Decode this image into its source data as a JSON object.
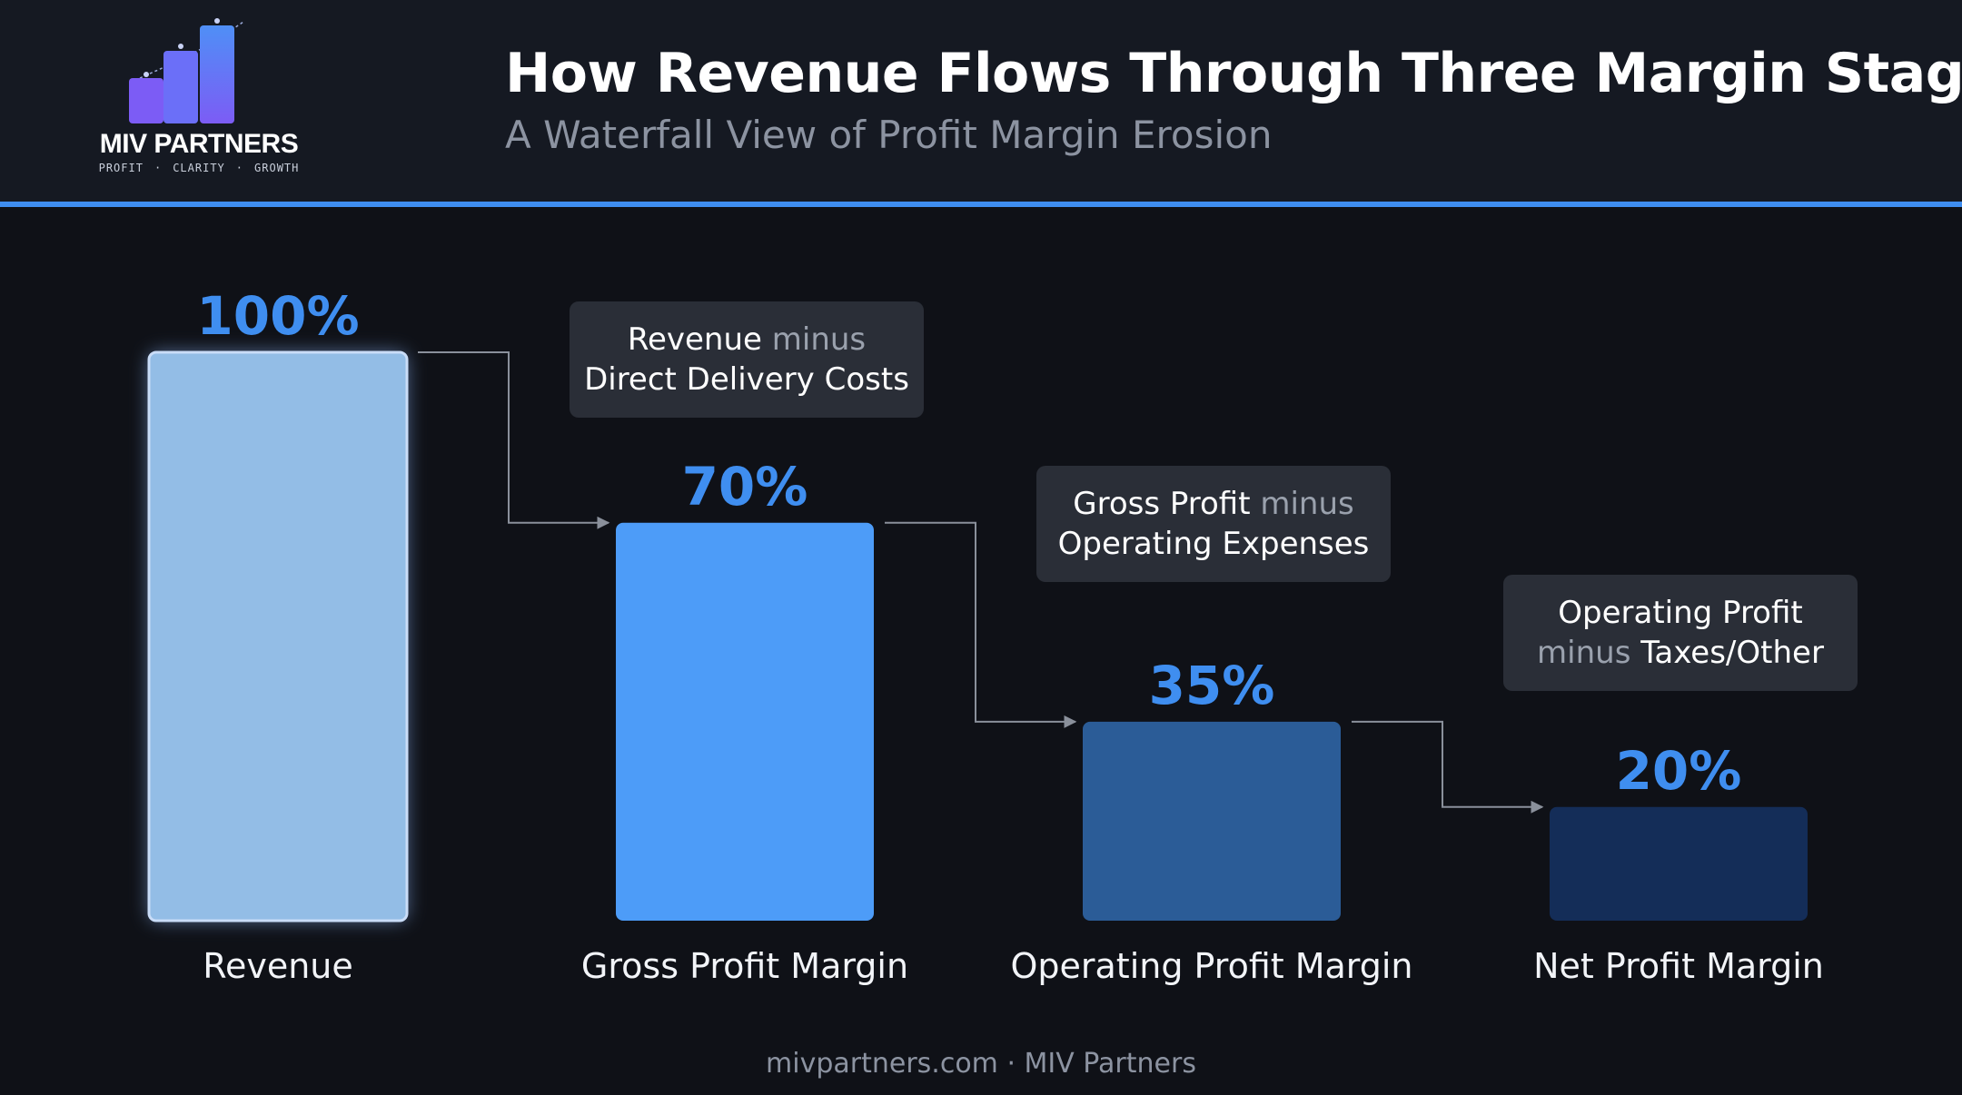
{
  "header": {
    "title": "How Revenue Flows Through Three Margin Stages",
    "subtitle": "A Waterfall View of Profit Margin Erosion",
    "logo": {
      "name": "MIV PARTNERS",
      "tagline": [
        "PROFIT",
        "CLARITY",
        "GROWTH"
      ],
      "bar_colors": [
        "#7c5cf5",
        "#6b6ff8",
        "#4f8ff6"
      ]
    }
  },
  "chart_data": {
    "type": "bar",
    "categories": [
      "Revenue",
      "Gross Profit Margin",
      "Operating Profit Margin",
      "Net Profit Margin"
    ],
    "values": [
      100,
      70,
      35,
      20
    ],
    "value_labels": [
      "100%",
      "70%",
      "35%",
      "20%"
    ],
    "ylim": [
      0,
      100
    ],
    "bar_colors": [
      "#93bde6",
      "#4d9cf8",
      "#2b5c97",
      "#142d58"
    ],
    "label_color": "#3f8ef0",
    "steps": [
      {
        "a": "Revenue",
        "op": "minus",
        "b": "Direct Delivery Costs"
      },
      {
        "a": "Gross Profit",
        "op": "minus",
        "b": "Operating Expenses"
      },
      {
        "a": "Operating Profit",
        "op": "minus",
        "b": "Taxes/Other"
      }
    ]
  },
  "footer": {
    "text": "mivpartners.com · MIV Partners"
  }
}
